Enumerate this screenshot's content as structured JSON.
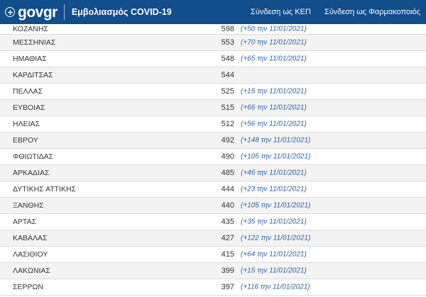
{
  "header": {
    "brand": "govgr",
    "app_title": "Εμβολιασμός COVID-19",
    "nav": {
      "kep_login": "Σύνδεση ως ΚΕΠ",
      "pharmacist_login": "Σύνδεση ως Φαρμακοποιός"
    },
    "emblem_icon": "greek-emblem-icon"
  },
  "colors": {
    "header_bg": "#124d8c",
    "delta_text": "#2b5fa8"
  },
  "rows": [
    {
      "region": "ΚΟΖΑΝΗΣ",
      "count": "598",
      "delta": "(+50 την 11/01/2021)"
    },
    {
      "region": "ΜΕΣΣΗΝΙΑΣ",
      "count": "553",
      "delta": "(+70 την 11/01/2021)"
    },
    {
      "region": "ΗΜΑΘΙΑΣ",
      "count": "548",
      "delta": "(+65 την 11/01/2021)"
    },
    {
      "region": "ΚΑΡΔΙΤΣΑΣ",
      "count": "544",
      "delta": ""
    },
    {
      "region": "ΠΕΛΛΑΣ",
      "count": "525",
      "delta": "(+15 την 11/01/2021)"
    },
    {
      "region": "ΕΥΒΟΙΑΣ",
      "count": "515",
      "delta": "(+66 την 11/01/2021)"
    },
    {
      "region": "ΗΛΕΙΑΣ",
      "count": "512",
      "delta": "(+56 την 11/01/2021)"
    },
    {
      "region": "ΕΒΡΟΥ",
      "count": "492",
      "delta": "(+148 την 11/01/2021)"
    },
    {
      "region": "ΦΘΙΩΤΙΔΑΣ",
      "count": "490",
      "delta": "(+105 την 11/01/2021)"
    },
    {
      "region": "ΑΡΚΑΔΙΑΣ",
      "count": "485",
      "delta": "(+46 την 11/01/2021)"
    },
    {
      "region": "ΔΥΤΙΚΗΣ ΑΤΤΙΚΗΣ",
      "count": "444",
      "delta": "(+23 την 11/01/2021)"
    },
    {
      "region": "ΞΑΝΘΗΣ",
      "count": "440",
      "delta": "(+105 την 11/01/2021)"
    },
    {
      "region": "ΑΡΤΑΣ",
      "count": "435",
      "delta": "(+35 την 11/01/2021)"
    },
    {
      "region": "ΚΑΒΑΛΑΣ",
      "count": "427",
      "delta": "(+122 την 11/01/2021)"
    },
    {
      "region": "ΛΑΣΙΘΙΟΥ",
      "count": "415",
      "delta": "(+64 την 11/01/2021)"
    },
    {
      "region": "ΛΑΚΩΝΙΑΣ",
      "count": "399",
      "delta": "(+15 την 11/01/2021)"
    },
    {
      "region": "ΣΕΡΡΩΝ",
      "count": "397",
      "delta": "(+116 την 11/01/2021)"
    }
  ]
}
